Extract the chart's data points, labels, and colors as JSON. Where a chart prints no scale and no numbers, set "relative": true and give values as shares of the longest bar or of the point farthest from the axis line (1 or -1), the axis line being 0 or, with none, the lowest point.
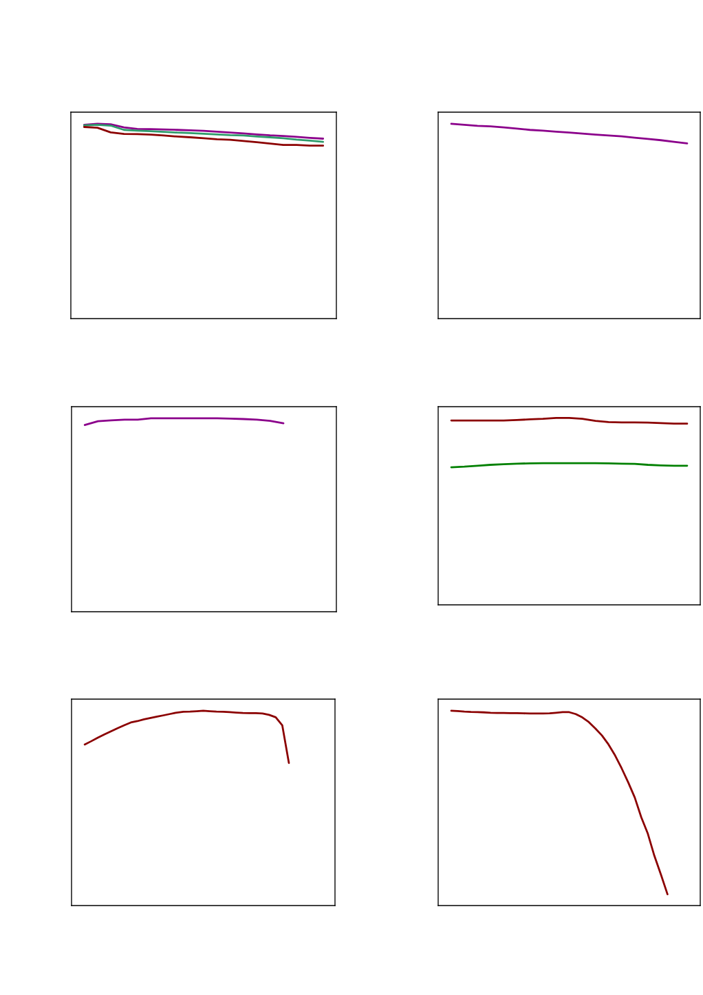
{
  "chart_data": [
    {
      "type": "line",
      "relative": true,
      "categories": [
        null,
        null,
        null,
        null,
        null,
        null,
        null,
        null,
        null,
        null,
        null,
        null,
        null,
        null,
        null,
        null,
        null,
        null,
        null,
        null,
        null
      ],
      "series": [
        {
          "color": "#8b008b",
          "values": [
            null,
            0.995,
            1,
            0.998,
            0.982,
            0.974,
            0.973,
            0.971,
            0.969,
            0.967,
            0.964,
            0.96,
            0.955,
            0.951,
            0.946,
            0.941,
            0.938,
            0.933,
            0.928,
            0.924,
            null
          ]
        },
        {
          "color": "#2e9b6b",
          "values": [
            null,
            0.992,
            0.995,
            0.991,
            0.969,
            0.965,
            0.962,
            0.959,
            0.955,
            0.953,
            0.949,
            0.946,
            0.942,
            0.94,
            0.935,
            0.931,
            0.926,
            0.919,
            0.914,
            0.908,
            null
          ]
        },
        {
          "color": "#8b0000",
          "values": [
            null,
            0.984,
            0.98,
            0.956,
            0.948,
            0.947,
            0.945,
            0.94,
            0.935,
            0.931,
            0.926,
            0.921,
            0.918,
            0.912,
            0.906,
            0.899,
            0.892,
            0.892,
            0.888,
            0.888,
            null
          ]
        }
      ]
    },
    {
      "type": "line",
      "relative": true,
      "categories": [
        null,
        null,
        null,
        null,
        null,
        null,
        null,
        null,
        null,
        null,
        null,
        null,
        null,
        null,
        null,
        null,
        null,
        null,
        null,
        null,
        null
      ],
      "series": [
        {
          "color": "#8b008b",
          "values": [
            null,
            1,
            0.995,
            0.99,
            0.987,
            0.982,
            0.976,
            0.969,
            0.965,
            0.96,
            0.955,
            0.95,
            0.945,
            0.94,
            0.936,
            0.929,
            0.923,
            0.916,
            0.908,
            0.9,
            null
          ]
        }
      ]
    },
    {
      "type": "line",
      "relative": true,
      "categories": [
        null,
        null,
        null,
        null,
        null,
        null,
        null,
        null,
        null,
        null,
        null,
        null,
        null,
        null,
        null,
        null,
        null,
        null,
        null,
        null,
        null
      ],
      "series": [
        {
          "color": "#8b008b",
          "values": [
            null,
            0.965,
            0.985,
            0.989,
            0.993,
            0.993,
            1,
            1,
            1,
            1,
            1,
            1,
            0.998,
            0.996,
            0.993,
            0.987,
            0.974,
            null,
            null,
            null,
            null
          ]
        }
      ]
    },
    {
      "type": "line",
      "relative": true,
      "categories": [
        null,
        null,
        null,
        null,
        null,
        null,
        null,
        null,
        null,
        null,
        null,
        null,
        null,
        null,
        null,
        null,
        null,
        null,
        null,
        null,
        null
      ],
      "series": [
        {
          "color": "#8b0000",
          "values": [
            null,
            0.986,
            0.986,
            0.986,
            0.986,
            0.986,
            0.989,
            0.992,
            0.995,
            1,
            1,
            0.995,
            0.984,
            0.978,
            0.976,
            0.976,
            0.975,
            0.972,
            0.969,
            0.969,
            null
          ]
        },
        {
          "color": "#008000",
          "values": [
            null,
            0.736,
            0.739,
            0.744,
            0.749,
            0.752,
            0.755,
            0.757,
            0.758,
            0.758,
            0.758,
            0.758,
            0.758,
            0.757,
            0.755,
            0.754,
            0.749,
            0.746,
            0.744,
            0.744,
            null
          ]
        }
      ]
    },
    {
      "type": "line",
      "relative": true,
      "categories": [
        null,
        null,
        null,
        null,
        null,
        null,
        null,
        null,
        null,
        null,
        null,
        null,
        null,
        null,
        null,
        null,
        null,
        null,
        null,
        null,
        null,
        null,
        null,
        null,
        null,
        null,
        null,
        null,
        null,
        null,
        null,
        null,
        null,
        null,
        null,
        null,
        null,
        null,
        null,
        null,
        null
      ],
      "series": [
        {
          "color": "#8b0000",
          "values": [
            null,
            null,
            0.827,
            0.844,
            0.862,
            0.879,
            0.895,
            0.911,
            0.926,
            0.94,
            0.947,
            0.956,
            0.963,
            0.97,
            0.977,
            0.984,
            0.991,
            0.995,
            0.996,
            0.998,
            1,
            0.998,
            0.996,
            0.995,
            0.993,
            0.991,
            0.989,
            0.988,
            0.988,
            0.986,
            0.979,
            0.967,
            0.925,
            0.732,
            null,
            null,
            null,
            null,
            null,
            null,
            null
          ]
        }
      ]
    },
    {
      "type": "line",
      "relative": true,
      "categories": [
        null,
        null,
        null,
        null,
        null,
        null,
        null,
        null,
        null,
        null,
        null,
        null,
        null,
        null,
        null,
        null,
        null,
        null,
        null,
        null,
        null,
        null,
        null,
        null,
        null,
        null,
        null,
        null,
        null,
        null,
        null,
        null,
        null,
        null,
        null,
        null,
        null,
        null,
        null,
        null,
        null
      ],
      "series": [
        {
          "color": "#8b0000",
          "values": [
            null,
            null,
            1,
            0.999,
            0.996,
            0.994,
            0.993,
            0.992,
            0.99,
            0.989,
            0.989,
            0.988,
            0.988,
            0.987,
            0.986,
            0.986,
            0.986,
            0.987,
            0.99,
            0.993,
            0.993,
            0.983,
            0.966,
            0.942,
            0.909,
            0.873,
            0.827,
            0.771,
            0.705,
            0.633,
            0.555,
            0.453,
            0.369,
            0.255,
            0.159,
            0.058,
            null,
            null,
            null,
            null,
            null
          ]
        }
      ]
    }
  ]
}
